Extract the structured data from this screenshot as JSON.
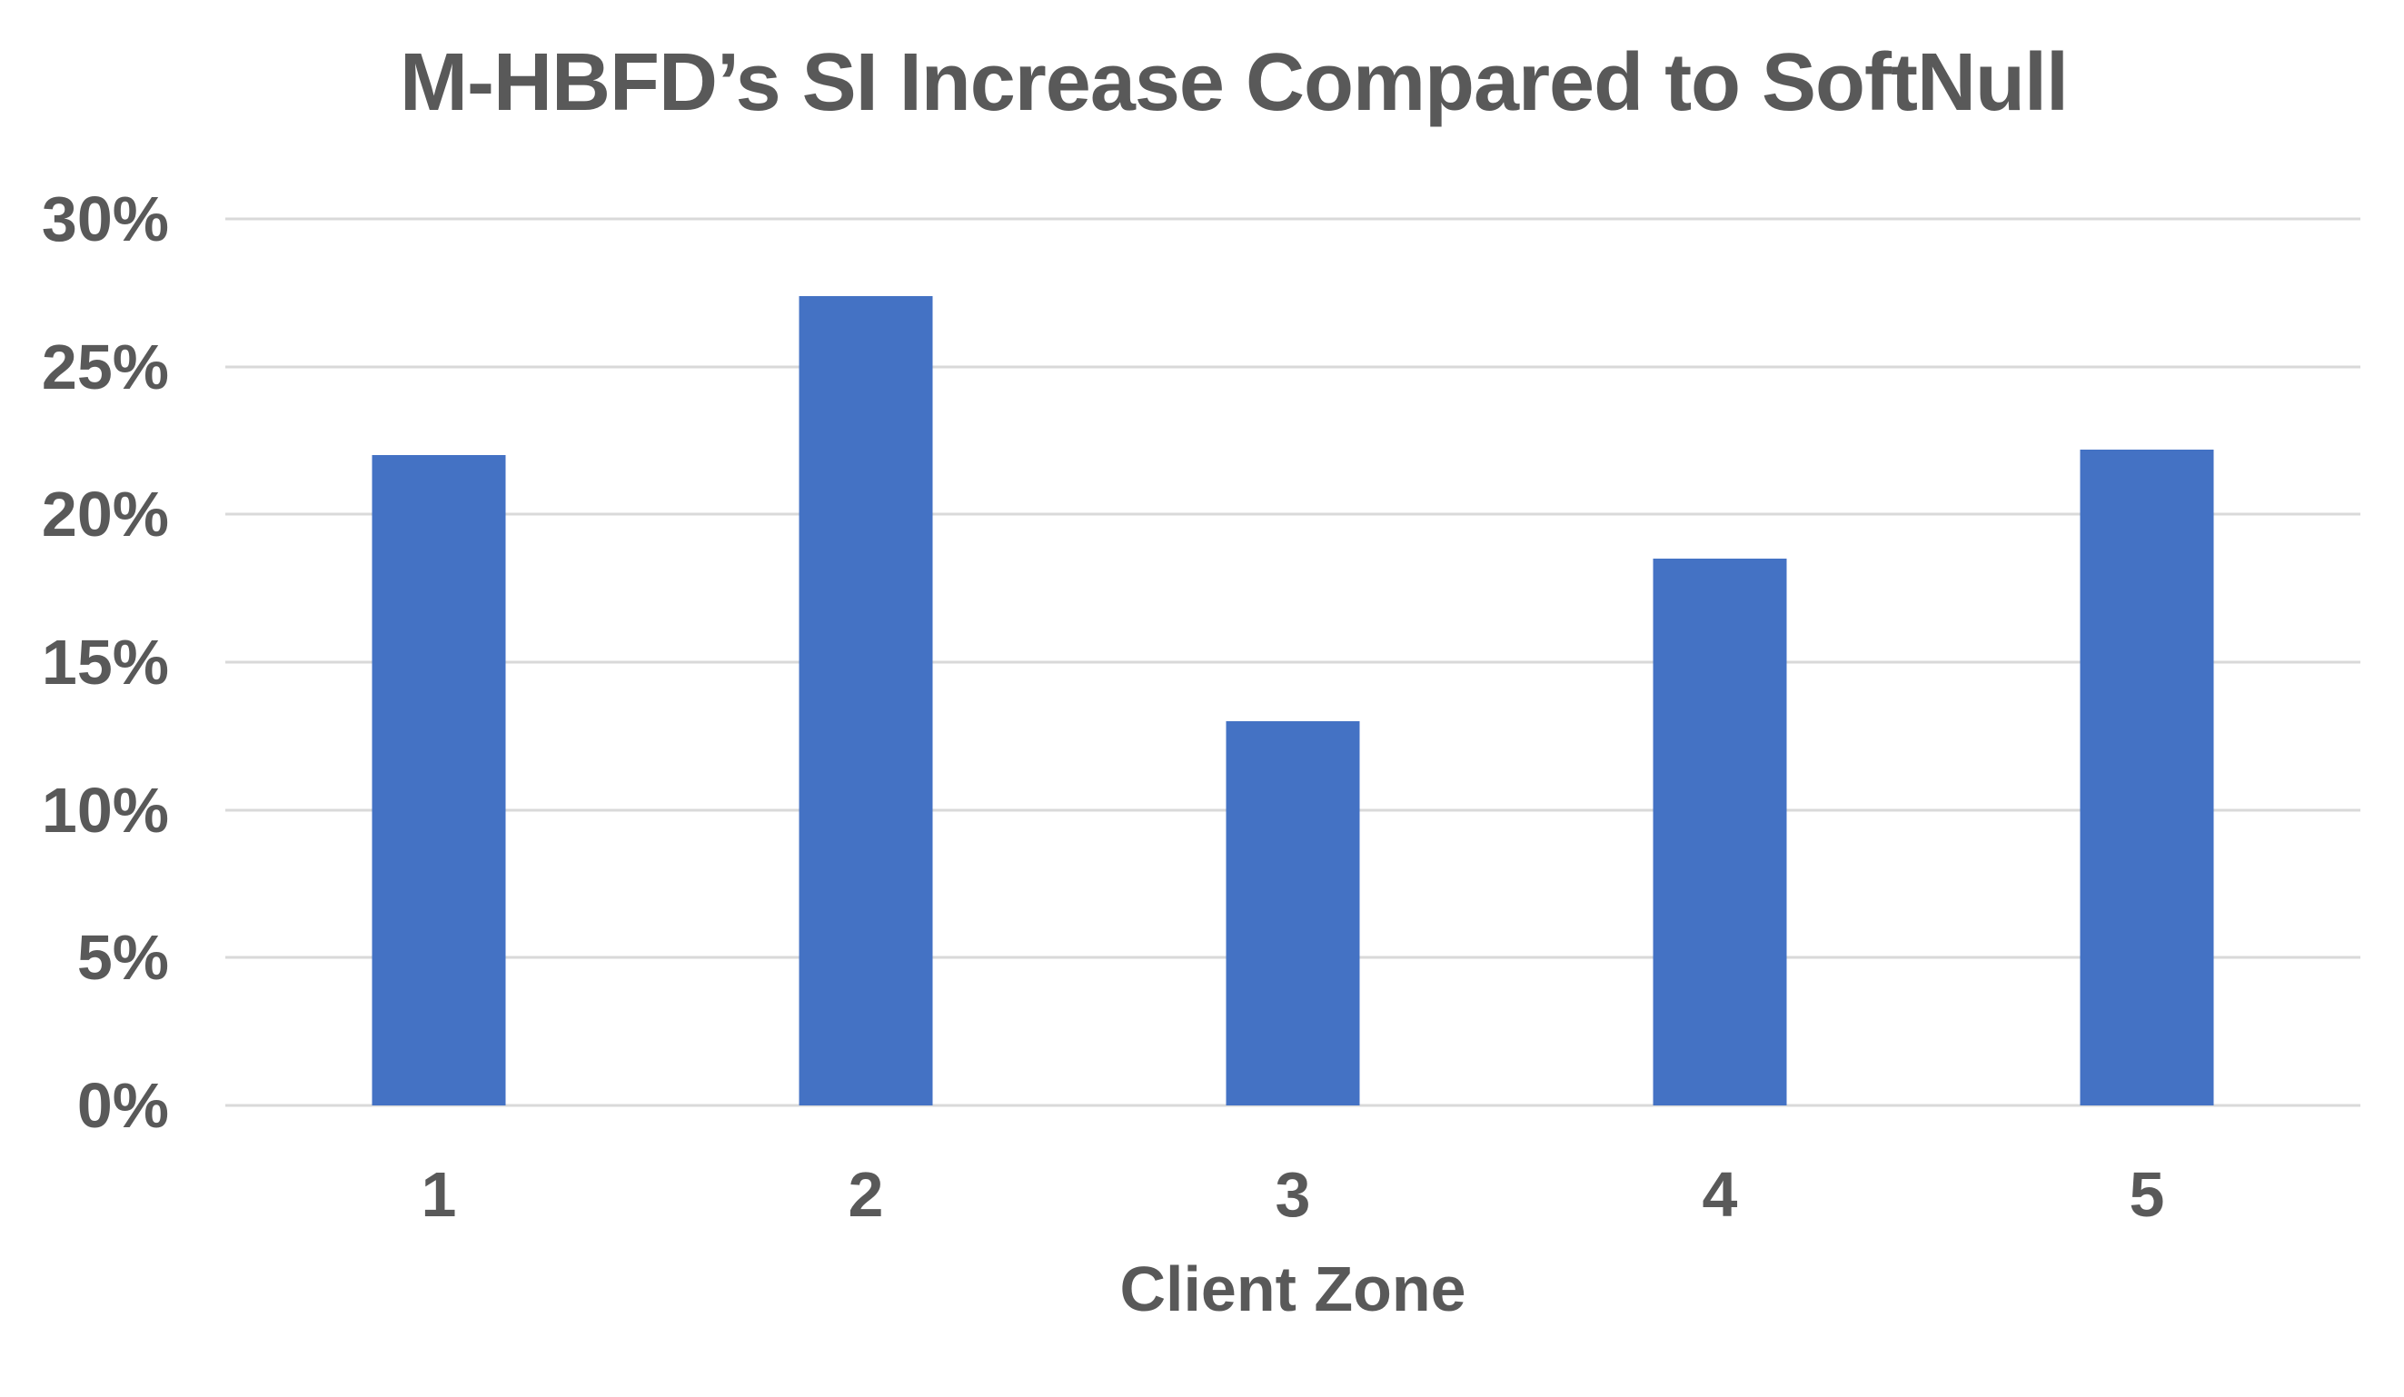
{
  "figure": {
    "background": "#ffffff"
  },
  "chart_data": {
    "type": "bar",
    "title": "M-HBFD’s SI Increase Compared to SoftNull",
    "xlabel": "Client Zone",
    "ylabel": "",
    "categories": [
      "1",
      "2",
      "3",
      "4",
      "5"
    ],
    "values": [
      22,
      27.4,
      13,
      18.5,
      22.2
    ],
    "unit": "%",
    "ylim": [
      0,
      30
    ],
    "ytick_step": 5,
    "ytick_labels": [
      "0%",
      "5%",
      "10%",
      "15%",
      "20%",
      "25%",
      "30%"
    ],
    "grid": "horizontal",
    "legend": "none",
    "bar_color": "#4472C4",
    "gridline_color": "#D9D9D9",
    "text_color": "#595959"
  }
}
